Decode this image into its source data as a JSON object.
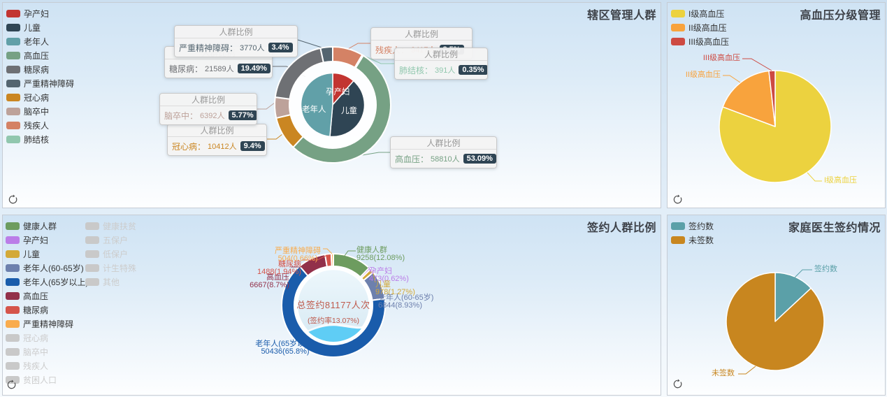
{
  "theme": {
    "page_background_top": "#cbdff0",
    "panel_background_top": "#cfe3f4",
    "panel_background_bottom": "#fdfeff",
    "panel_border": "#c6ccd4",
    "title_color": "#3e4249",
    "legend_text_color": "#333333",
    "legend_disabled_color": "#cccccc",
    "callout_header_color": "#979797",
    "callout_background": "#f4f4f4",
    "badge_background": "#2f4554"
  },
  "icons": {
    "refresh": "circular-arrow"
  },
  "chart_data": [
    {
      "type": "pie",
      "title": "辖区管理人群",
      "legend_position": "left",
      "legend": [
        {
          "label": "孕产妇",
          "color": "#c23531"
        },
        {
          "label": "儿童",
          "color": "#2f4554"
        },
        {
          "label": "老年人",
          "color": "#61a0a8"
        },
        {
          "label": "高血压",
          "color": "#76a184"
        },
        {
          "label": "糖尿病",
          "color": "#6e7074"
        },
        {
          "label": "严重精神障碍",
          "color": "#546570"
        },
        {
          "label": "冠心病",
          "color": "#ca8622"
        },
        {
          "label": "脑卒中",
          "color": "#bda29a"
        },
        {
          "label": "残疾人",
          "color": "#d48265"
        },
        {
          "label": "肺结核",
          "color": "#91c7ae"
        }
      ],
      "tooltip_header": "人群比例",
      "series": [
        {
          "name": "残疾人",
          "label": "残疾人：",
          "value": 9417,
          "value_label": "9417人",
          "pct": 8.5,
          "pct_label": "8.5%",
          "color": "#d48265"
        },
        {
          "name": "肺结核",
          "label": "肺结核：",
          "value": 391,
          "value_label": "391人",
          "pct": 0.35,
          "pct_label": "0.35%",
          "color": "#91c7ae"
        },
        {
          "name": "高血压",
          "label": "高血压：",
          "value": 58810,
          "value_label": "58810人",
          "pct": 53.09,
          "pct_label": "53.09%",
          "color": "#76a184"
        },
        {
          "name": "冠心病",
          "label": "冠心病：",
          "value": 10412,
          "value_label": "10412人",
          "pct": 9.4,
          "pct_label": "9.4%",
          "color": "#ca8622"
        },
        {
          "name": "脑卒中",
          "label": "脑卒中：",
          "value": 6392,
          "value_label": "6392人",
          "pct": 5.77,
          "pct_label": "5.77%",
          "color": "#bda29a"
        },
        {
          "name": "糖尿病",
          "label": "糖尿病：",
          "value": 21589,
          "value_label": "21589人",
          "pct": 19.49,
          "pct_label": "19.49%",
          "color": "#6e7074"
        },
        {
          "name": "严重精神障碍",
          "label": "严重精神障碍：",
          "value": 3770,
          "value_label": "3770人",
          "pct": 3.4,
          "pct_label": "3.4%",
          "color": "#546570"
        }
      ],
      "inner_series": [
        {
          "name": "孕产妇",
          "pct": 11.4,
          "color": "#c23531"
        },
        {
          "name": "儿童",
          "pct": 40.0,
          "color": "#2f4554"
        },
        {
          "name": "老年人",
          "pct": 48.6,
          "color": "#61a0a8"
        }
      ]
    },
    {
      "type": "pie",
      "title": "高血压分级管理",
      "legend_position": "left",
      "legend": [
        {
          "label": "I级高血压",
          "color": "#ecd23f"
        },
        {
          "label": "II级高血压",
          "color": "#f8a33d"
        },
        {
          "label": "III级高血压",
          "color": "#cd4a42"
        }
      ],
      "series": [
        {
          "name": "I级高血压",
          "pct": 80.7,
          "color": "#ecd23f"
        },
        {
          "name": "II级高血压",
          "pct": 17.5,
          "color": "#f8a33d"
        },
        {
          "name": "III级高血压",
          "pct": 1.8,
          "color": "#cd4a42"
        }
      ]
    },
    {
      "type": "pie",
      "title": "签约人群比例",
      "legend_position": "left",
      "legend_col1": [
        {
          "label": "健康人群",
          "color": "#6d9c5f",
          "disabled": false
        },
        {
          "label": "孕产妇",
          "color": "#bb7de8",
          "disabled": false
        },
        {
          "label": "儿童",
          "color": "#d3a938",
          "disabled": false
        },
        {
          "label": "老年人(60-65岁)",
          "color": "#6d80ad",
          "disabled": false
        },
        {
          "label": "老年人(65岁以上)",
          "color": "#1a5cab",
          "disabled": false
        },
        {
          "label": "高血压",
          "color": "#92304a",
          "disabled": false
        },
        {
          "label": "糖尿病",
          "color": "#d5544a",
          "disabled": false
        },
        {
          "label": "严重精神障碍",
          "color": "#f9ac4e",
          "disabled": false
        },
        {
          "label": "冠心病",
          "color": "#c9c9c9",
          "disabled": true
        },
        {
          "label": "脑卒中",
          "color": "#c9c9c9",
          "disabled": true
        },
        {
          "label": "残疾人",
          "color": "#c9c9c9",
          "disabled": true
        },
        {
          "label": "贫困人口",
          "color": "#c9c9c9",
          "disabled": true
        }
      ],
      "legend_col2": [
        {
          "label": "健康扶贫",
          "color": "#c9c9c9",
          "disabled": true
        },
        {
          "label": "五保户",
          "color": "#c9c9c9",
          "disabled": true
        },
        {
          "label": "低保户",
          "color": "#c9c9c9",
          "disabled": true
        },
        {
          "label": "计生特殊",
          "color": "#c9c9c9",
          "disabled": true
        },
        {
          "label": "其他",
          "color": "#c9c9c9",
          "disabled": true
        }
      ],
      "series": [
        {
          "name": "健康人群",
          "value": 9258,
          "pct": 12.08,
          "label2": "9258(12.08%)",
          "color": "#6d9c5f"
        },
        {
          "name": "孕产妇",
          "value": 473,
          "pct": 0.62,
          "label2": "473(0.62%)",
          "color": "#bb7de8"
        },
        {
          "name": "儿童",
          "value": 978,
          "pct": 1.27,
          "label2": "978(1.27%)",
          "color": "#d3a938"
        },
        {
          "name": "老年人(60-65岁)",
          "value": 6844,
          "pct": 8.93,
          "label2": "6844(8.93%)",
          "color": "#6d80ad"
        },
        {
          "name": "老年人(65岁以上)",
          "value": 50436,
          "pct": 65.8,
          "label2": "50436(65.8%)",
          "color": "#1a5cab"
        },
        {
          "name": "高血压",
          "value": 6667,
          "pct": 8.7,
          "label2": "6667(8.7%)",
          "color": "#92304a"
        },
        {
          "name": "糖尿病",
          "value": 1488,
          "pct": 1.94,
          "label2": "1488(1.94%)",
          "color": "#d5544a"
        },
        {
          "name": "严重精神障碍",
          "value": 504,
          "pct": 0.66,
          "label2": "504(0.66%)",
          "color": "#f9ac4e"
        }
      ],
      "center": {
        "line1": "总签约81177人次",
        "line2": "(签约率13.07%)",
        "text_color": "#bf5b4d",
        "disk_color": "#e7f3fa",
        "wave_color": "#5fcdf5"
      }
    },
    {
      "type": "pie",
      "title": "家庭医生签约情况",
      "legend_position": "left",
      "legend": [
        {
          "label": "签约数",
          "color": "#5ba0a8"
        },
        {
          "label": "未签数",
          "color": "#c8861f"
        }
      ],
      "series": [
        {
          "name": "签约数",
          "pct": 13.07,
          "color": "#5ba0a8"
        },
        {
          "name": "未签数",
          "pct": 86.93,
          "color": "#c8861f"
        }
      ]
    }
  ]
}
